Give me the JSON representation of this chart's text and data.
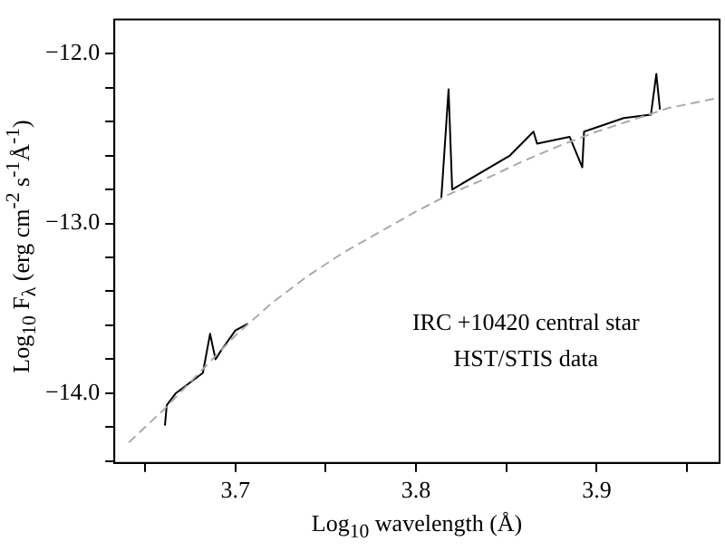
{
  "chart_data": {
    "type": "line",
    "xlabel": "Log$_{10}$ wavelength (Å)",
    "ylabel": "Log$_{10}$ F$_{λ}$ (erg cm$^{-2}$ s$^{-1}$Å$^{-1}$)",
    "annotations": [
      "IRC +10420 central star",
      "HST/STIS data"
    ],
    "xlim": [
      3.633,
      3.968
    ],
    "ylim": [
      -14.41,
      -11.8
    ],
    "xticks": [
      {
        "value": 3.65,
        "label": null
      },
      3.7,
      {
        "value": 3.75,
        "label": null
      },
      3.8,
      {
        "value": 3.85,
        "label": null
      },
      3.9,
      {
        "value": 3.95,
        "label": null
      }
    ],
    "yticks": [
      {
        "value": -14.4,
        "label": null
      },
      {
        "value": -14.2,
        "label": null
      },
      {
        "value": -14,
        "label": "−14.0"
      },
      {
        "value": -13.8,
        "label": null
      },
      {
        "value": -13.6,
        "label": null
      },
      {
        "value": -13.4,
        "label": null
      },
      {
        "value": -13.2,
        "label": null
      },
      {
        "value": -13,
        "label": "−13.0"
      },
      {
        "value": -12.8,
        "label": null
      },
      {
        "value": -12.6,
        "label": null
      },
      {
        "value": -12.4,
        "label": null
      },
      {
        "value": -12.2,
        "label": null
      },
      {
        "value": -12,
        "label": "−12.0"
      }
    ],
    "grid": false,
    "legend": false,
    "series": [
      {
        "color": "#aaaaaa",
        "line_style": "dashed",
        "x": [
          3.641,
          3.66,
          3.68,
          3.7,
          3.72,
          3.74,
          3.76,
          3.78,
          3.8,
          3.82,
          3.84,
          3.86,
          3.88,
          3.9,
          3.92,
          3.94,
          3.968
        ],
        "values": [
          -14.29,
          -14.1,
          -13.88,
          -13.66,
          -13.47,
          -13.31,
          -13.17,
          -13.05,
          -12.93,
          -12.82,
          -12.73,
          -12.63,
          -12.54,
          -12.46,
          -12.39,
          -12.32,
          -12.26
        ]
      },
      {
        "color": "#000000",
        "line_style": "solid",
        "x": [
          3.661,
          3.662,
          3.667,
          3.682,
          3.686,
          3.689,
          3.692,
          3.7,
          3.707
        ],
        "values": [
          -14.19,
          -14.07,
          -14.0,
          -13.88,
          -13.65,
          -13.8,
          -13.75,
          -13.63,
          -13.59
        ]
      },
      {
        "color": "#000000",
        "line_style": "solid",
        "x": [
          3.814,
          3.818,
          3.82,
          3.852,
          3.865,
          3.867,
          3.885,
          3.892,
          3.893,
          3.915,
          3.93,
          3.933,
          3.935
        ],
        "values": [
          -12.85,
          -12.21,
          -12.8,
          -12.6,
          -12.46,
          -12.53,
          -12.49,
          -12.67,
          -12.46,
          -12.38,
          -12.36,
          -12.12,
          -12.33
        ]
      }
    ]
  }
}
